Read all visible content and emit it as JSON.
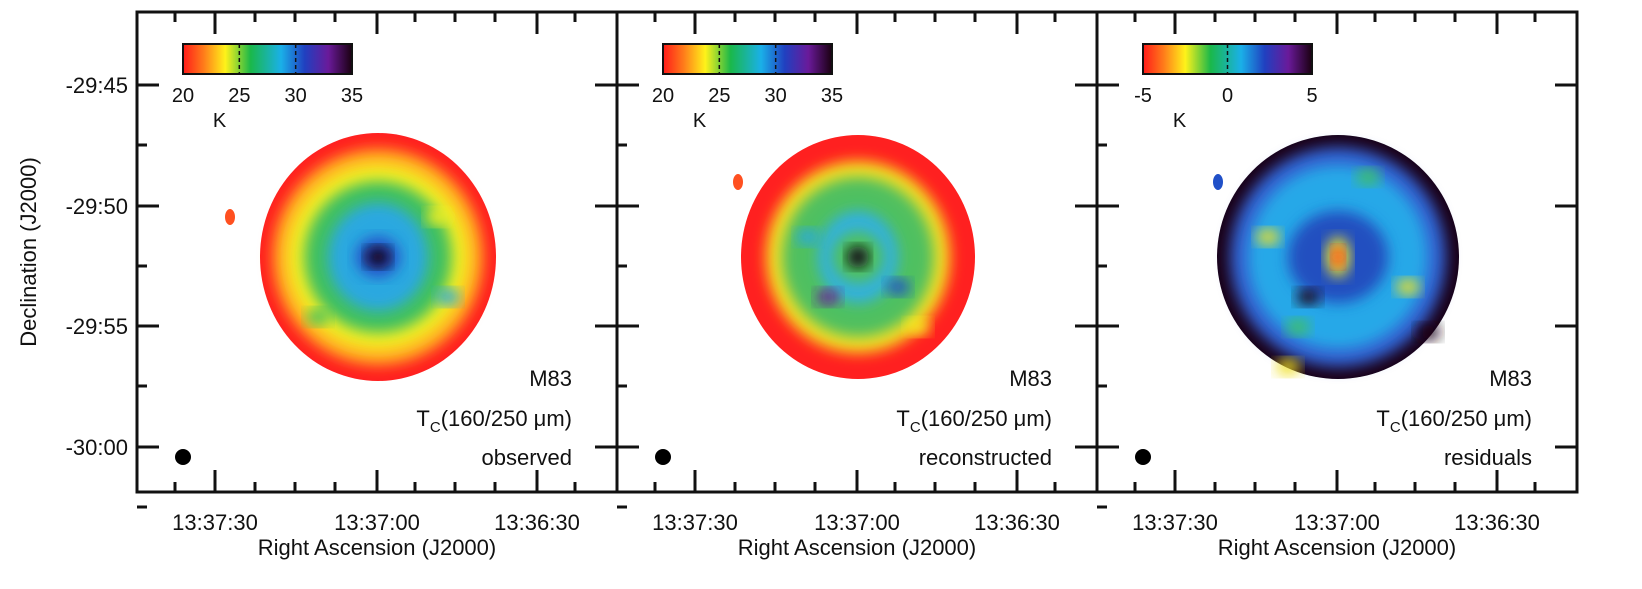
{
  "y_axis": {
    "title": "Declination (J2000)",
    "ticks": [
      "-29:45",
      "-29:50",
      "-29:55",
      "-30:00"
    ]
  },
  "panels": [
    {
      "x_title": "Right Ascension (J2000)",
      "x_ticks": [
        "13:37:30",
        "13:37:00",
        "13:36:30"
      ],
      "colorbar": {
        "ticks": [
          20,
          25,
          30,
          35
        ],
        "unit": "K"
      },
      "object": "M83",
      "quantity": {
        "symbol": "T",
        "subscript": "C",
        "band": "(160/250 μm)"
      },
      "label": "observed"
    },
    {
      "x_title": "Right Ascension (J2000)",
      "x_ticks": [
        "13:37:30",
        "13:37:00",
        "13:36:30"
      ],
      "colorbar": {
        "ticks": [
          20,
          25,
          30,
          35
        ],
        "unit": "K"
      },
      "object": "M83",
      "quantity": {
        "symbol": "T",
        "subscript": "C",
        "band": "(160/250 μm)"
      },
      "label": "reconstructed"
    },
    {
      "x_title": "Right Ascension (J2000)",
      "x_ticks": [
        "13:37:30",
        "13:37:00",
        "13:36:30"
      ],
      "colorbar": {
        "ticks": [
          -5,
          0,
          5
        ],
        "unit": "K"
      },
      "object": "M83",
      "quantity": {
        "symbol": "T",
        "subscript": "C",
        "band": "(160/250 μm)"
      },
      "label": "residuals"
    }
  ]
}
